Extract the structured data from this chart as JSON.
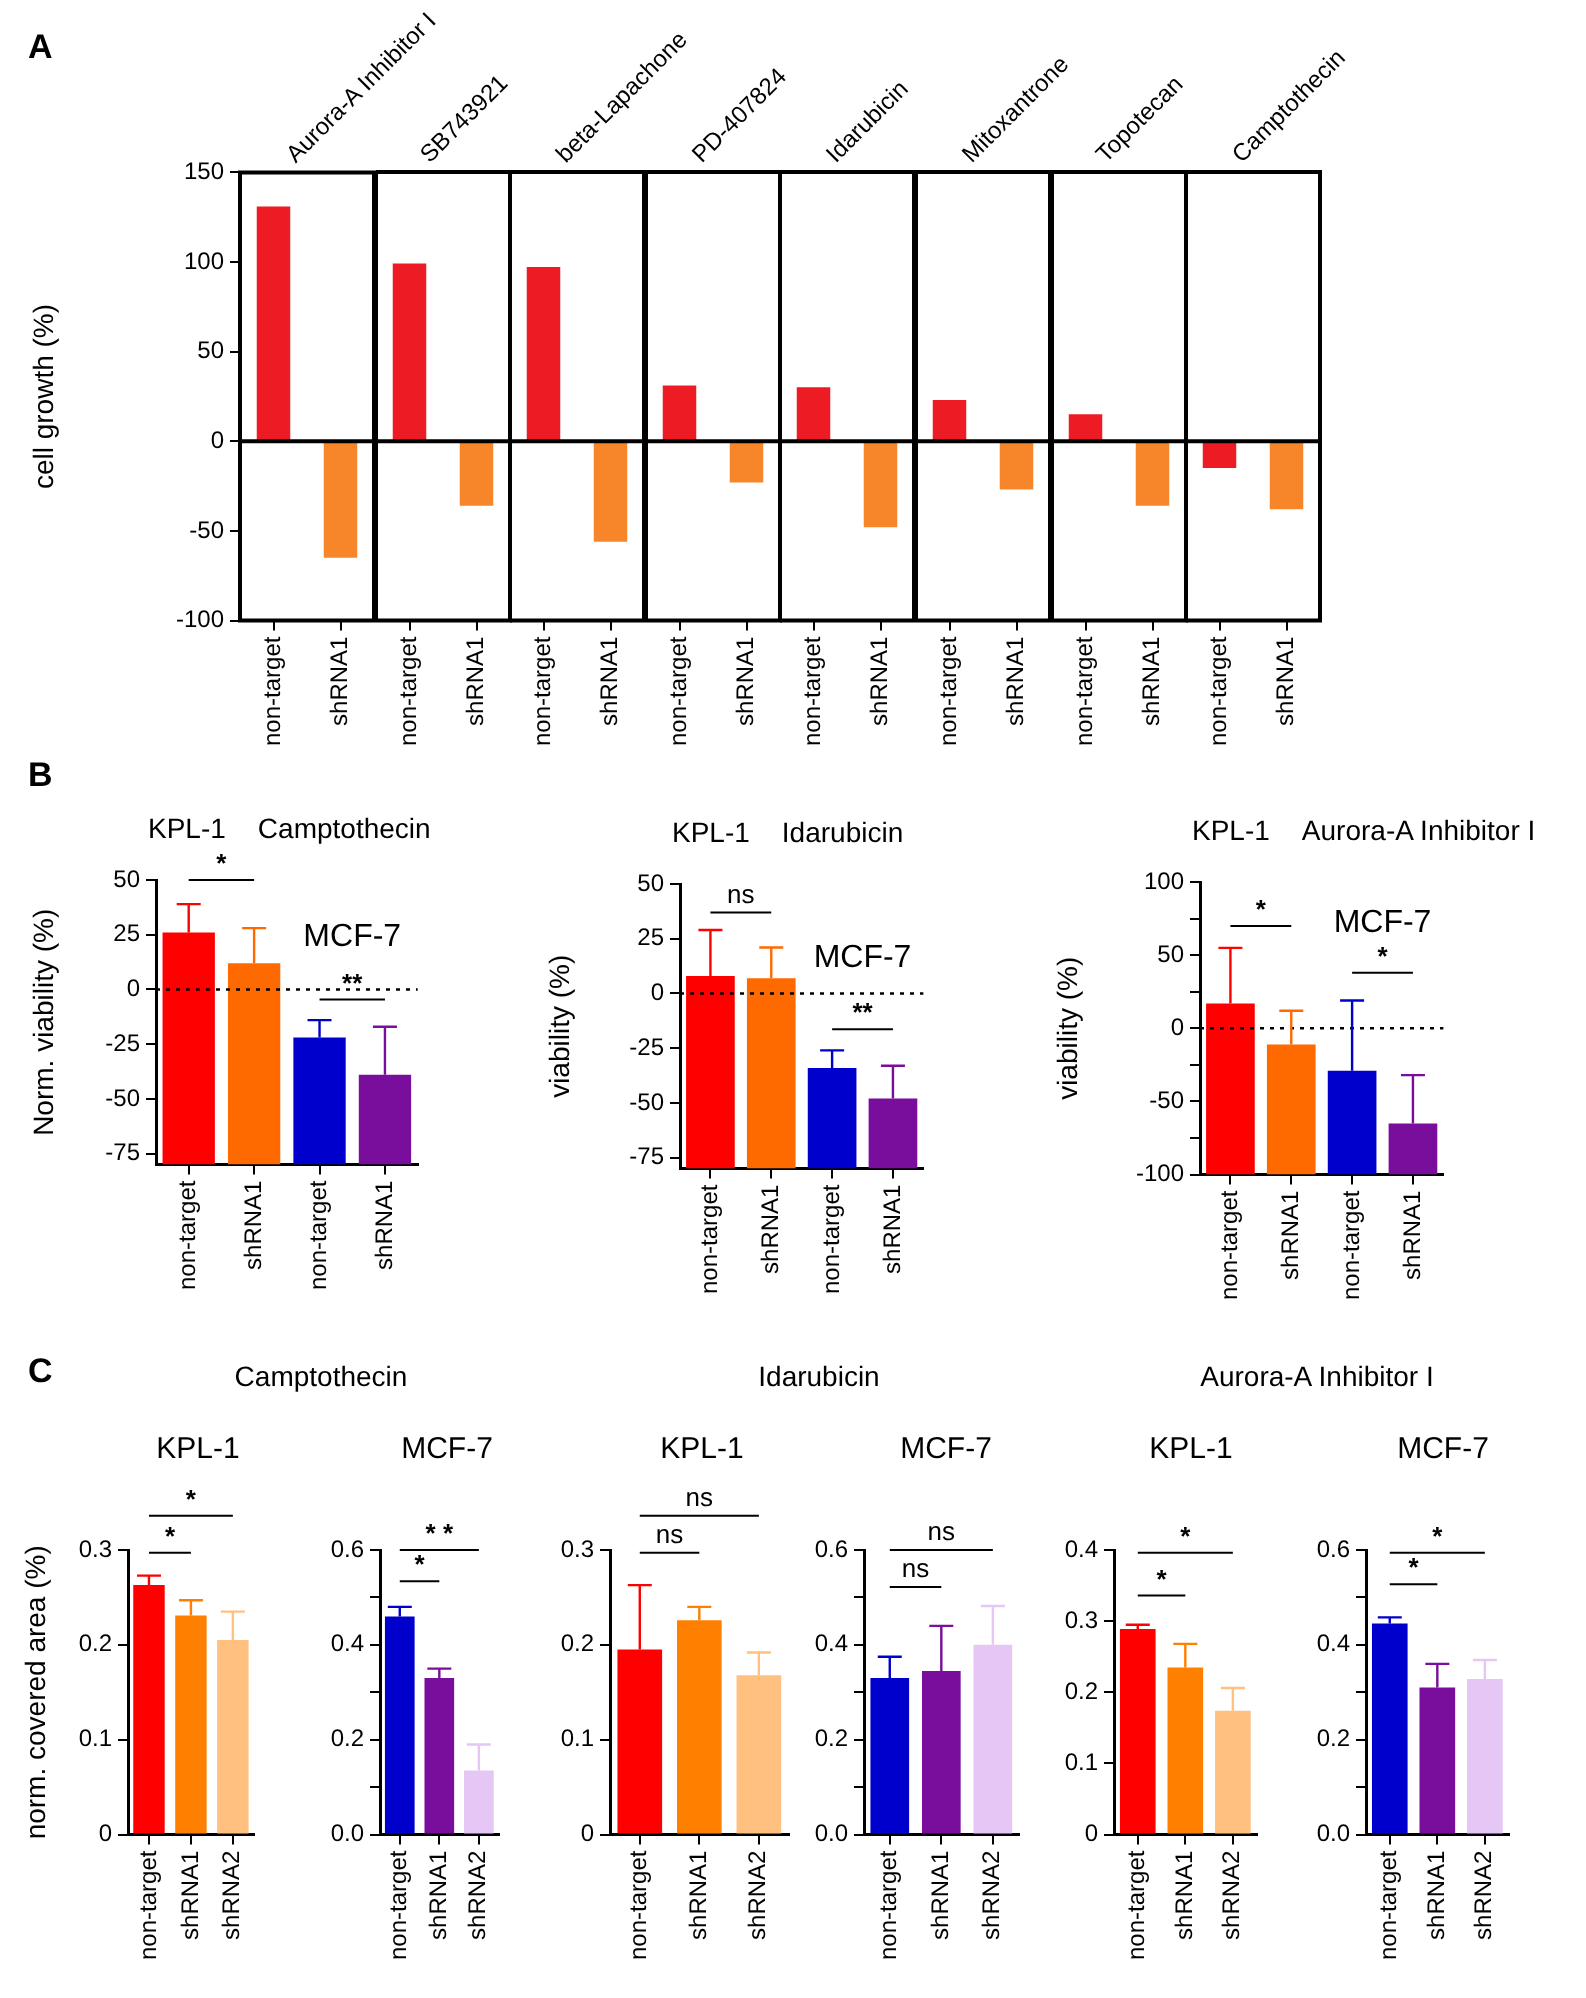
{
  "chart_data": [
    {
      "type": "bar",
      "title": "Aurora-A Inhibitor I",
      "ylabel": "cell growth (%)",
      "annotations": [
        "A"
      ],
      "categories": [
        "non-target",
        "shRNA1"
      ],
      "values": [
        131,
        -65
      ],
      "colors": [
        "#ed1c24",
        "#f7852a"
      ],
      "ylim": [
        -100,
        150
      ],
      "yticks": [
        -100,
        -50,
        0,
        50,
        100,
        150
      ],
      "ref_lines": [
        {
          "axis": "y",
          "value": 0,
          "line_style": "solid"
        }
      ]
    },
    {
      "type": "bar",
      "title": "SB743921",
      "categories": [
        "non-target",
        "shRNA1"
      ],
      "values": [
        99,
        -36
      ],
      "colors": [
        "#ed1c24",
        "#f7852a"
      ],
      "ylim": [
        -100,
        150
      ],
      "yticks": [
        -100,
        -50,
        0,
        50,
        100,
        150
      ],
      "tick_labels": "x",
      "ref_lines": [
        {
          "axis": "y",
          "value": 0,
          "line_style": "solid"
        }
      ]
    },
    {
      "type": "bar",
      "title": "beta-Lapachone",
      "categories": [
        "non-target",
        "shRNA1"
      ],
      "values": [
        97,
        -56
      ],
      "colors": [
        "#ed1c24",
        "#f7852a"
      ],
      "ylim": [
        -100,
        150
      ],
      "yticks": [
        -100,
        -50,
        0,
        50,
        100,
        150
      ],
      "tick_labels": "x",
      "ref_lines": [
        {
          "axis": "y",
          "value": 0,
          "line_style": "solid"
        }
      ]
    },
    {
      "type": "bar",
      "title": "PD-407824",
      "categories": [
        "non-target",
        "shRNA1"
      ],
      "values": [
        31,
        -23
      ],
      "colors": [
        "#ed1c24",
        "#f7852a"
      ],
      "ylim": [
        -100,
        150
      ],
      "yticks": [
        -100,
        -50,
        0,
        50,
        100,
        150
      ],
      "tick_labels": "x",
      "ref_lines": [
        {
          "axis": "y",
          "value": 0,
          "line_style": "solid"
        }
      ]
    },
    {
      "type": "bar",
      "title": "Idarubicin",
      "categories": [
        "non-target",
        "shRNA1"
      ],
      "values": [
        30,
        -48
      ],
      "colors": [
        "#ed1c24",
        "#f7852a"
      ],
      "ylim": [
        -100,
        150
      ],
      "yticks": [
        -100,
        -50,
        0,
        50,
        100,
        150
      ],
      "tick_labels": "x",
      "ref_lines": [
        {
          "axis": "y",
          "value": 0,
          "line_style": "solid"
        }
      ]
    },
    {
      "type": "bar",
      "title": "Mitoxantrone",
      "categories": [
        "non-target",
        "shRNA1"
      ],
      "values": [
        23,
        -27
      ],
      "colors": [
        "#ed1c24",
        "#f7852a"
      ],
      "ylim": [
        -100,
        150
      ],
      "yticks": [
        -100,
        -50,
        0,
        50,
        100,
        150
      ],
      "tick_labels": "x",
      "ref_lines": [
        {
          "axis": "y",
          "value": 0,
          "line_style": "solid"
        }
      ]
    },
    {
      "type": "bar",
      "title": "Topotecan",
      "categories": [
        "non-target",
        "shRNA1"
      ],
      "values": [
        15,
        -36
      ],
      "colors": [
        "#ed1c24",
        "#f7852a"
      ],
      "ylim": [
        -100,
        150
      ],
      "yticks": [
        -100,
        -50,
        0,
        50,
        100,
        150
      ],
      "tick_labels": "x",
      "ref_lines": [
        {
          "axis": "y",
          "value": 0,
          "line_style": "solid"
        }
      ]
    },
    {
      "type": "bar",
      "title": "Camptothecin",
      "categories": [
        "non-target",
        "shRNA1"
      ],
      "values": [
        -15,
        -38
      ],
      "colors": [
        "#ed1c24",
        "#f7852a"
      ],
      "ylim": [
        -100,
        150
      ],
      "yticks": [
        -100,
        -50,
        0,
        50,
        100,
        150
      ],
      "tick_labels": "x",
      "ref_lines": [
        {
          "axis": "y",
          "value": 0,
          "line_style": "solid"
        }
      ]
    },
    {
      "type": "bar",
      "title": "Camptothecin",
      "subtitle": "KPL-1",
      "ylabel": "Norm. viability (%)",
      "annotations": [
        "B",
        "*",
        "**",
        "MCF-7"
      ],
      "categories": [
        "non-target",
        "shRNA1",
        "non-target",
        "shRNA1"
      ],
      "base": [
        -80,
        -80,
        -80,
        -80
      ],
      "values": [
        106,
        92,
        58,
        41
      ],
      "colors": [
        "#ff0000",
        "#ff6a00",
        "#0000cc",
        "#7a0e9c"
      ],
      "errors": [
        [
          26,
          39
        ],
        [
          12,
          28
        ],
        [
          -22,
          -14
        ],
        [
          -39,
          -17
        ]
      ],
      "ylim": [
        -80,
        50
      ],
      "yticks": [
        -75,
        -50,
        -25,
        0,
        25,
        50
      ],
      "ref_lines": [
        {
          "axis": "y",
          "value": 0,
          "line_style": "dotted"
        }
      ]
    },
    {
      "type": "bar",
      "title": "Idarubicin",
      "subtitle": "KPL-1",
      "ylabel": "viability (%)",
      "annotations": [
        "ns",
        "**",
        "MCF-7"
      ],
      "categories": [
        "non-target",
        "shRNA1",
        "non-target",
        "shRNA1"
      ],
      "base": [
        -80,
        -80,
        -80,
        -80
      ],
      "values": [
        88,
        87,
        46,
        32
      ],
      "colors": [
        "#ff0000",
        "#ff6a00",
        "#0000cc",
        "#7a0e9c"
      ],
      "errors": [
        [
          8,
          29
        ],
        [
          7,
          21
        ],
        [
          -34,
          -26
        ],
        [
          -48,
          -33
        ]
      ],
      "ylim": [
        -80,
        50
      ],
      "yticks": [
        -75,
        -50,
        -25,
        0,
        25,
        50
      ],
      "ref_lines": [
        {
          "axis": "y",
          "value": 0,
          "line_style": "dotted"
        }
      ]
    },
    {
      "type": "bar",
      "title": "Aurora-A Inhibitor I",
      "subtitle": "KPL-1",
      "ylabel": "viability (%)",
      "annotations": [
        "*",
        "*",
        "MCF-7"
      ],
      "categories": [
        "non-target",
        "shRNA1",
        "non-target",
        "shRNA1"
      ],
      "base": [
        -100,
        -100,
        -100,
        -100
      ],
      "values": [
        117,
        89,
        71,
        35
      ],
      "colors": [
        "#ff0000",
        "#ff6a00",
        "#0000cc",
        "#7a0e9c"
      ],
      "errors": [
        [
          17,
          55
        ],
        [
          -11,
          12
        ],
        [
          -29,
          19
        ],
        [
          -65,
          -32
        ]
      ],
      "ylim": [
        -100,
        100
      ],
      "yticks": [
        -100,
        {
          "value": -75,
          "label": null
        },
        -50,
        {
          "value": -25,
          "label": null
        },
        0,
        {
          "value": 25,
          "label": null
        },
        50,
        {
          "value": 75,
          "label": null
        },
        100
      ],
      "ref_lines": [
        {
          "axis": "y",
          "value": 0,
          "line_style": "dotted"
        }
      ]
    },
    {
      "type": "bar",
      "title": "Camptothecin",
      "subtitle": "KPL-1",
      "ylabel": "norm. covered area (%)",
      "annotations": [
        "C",
        "*",
        "*"
      ],
      "categories": [
        "non-target",
        "shRNA1",
        "shRNA2"
      ],
      "values": [
        0.263,
        0.231,
        0.205
      ],
      "colors": [
        "#ff0000",
        "#ff8000",
        "#ffc080"
      ],
      "errors": [
        [
          0.263,
          0.273
        ],
        [
          0.231,
          0.247
        ],
        [
          0.205,
          0.235
        ]
      ],
      "ylim": [
        0,
        0.3
      ],
      "yticks": [
        0,
        0.1,
        0.2,
        0.3
      ]
    },
    {
      "type": "bar",
      "title": "MCF-7",
      "annotations": [
        "*",
        "* *"
      ],
      "categories": [
        "non-target",
        "shRNA1",
        "shRNA2"
      ],
      "values": [
        0.46,
        0.33,
        0.135
      ],
      "colors": [
        "#0000cc",
        "#7a0e9c",
        "#e6c6f4"
      ],
      "errors": [
        [
          0.46,
          0.48
        ],
        [
          0.33,
          0.35
        ],
        [
          0.135,
          0.19
        ]
      ],
      "ylim": [
        0,
        0.6
      ],
      "yticks": [
        {
          "value": 0,
          "label": "0.0"
        },
        {
          "value": 0.1,
          "label": null
        },
        0.2,
        {
          "value": 0.3,
          "label": null
        },
        0.4,
        {
          "value": 0.5,
          "label": null
        },
        0.6
      ]
    },
    {
      "type": "bar",
      "title": "Idarubicin",
      "subtitle": "KPL-1",
      "annotations": [
        "ns",
        "ns"
      ],
      "categories": [
        "non-target",
        "shRNA1",
        "shRNA2"
      ],
      "values": [
        0.195,
        0.226,
        0.168
      ],
      "colors": [
        "#ff0000",
        "#ff8000",
        "#ffc080"
      ],
      "errors": [
        [
          0.195,
          0.263
        ],
        [
          0.226,
          0.24
        ],
        [
          0.168,
          0.192
        ]
      ],
      "ylim": [
        0,
        0.3
      ],
      "yticks": [
        0,
        0.1,
        0.2,
        0.3
      ]
    },
    {
      "type": "bar",
      "title": "MCF-7",
      "annotations": [
        "ns",
        "ns"
      ],
      "categories": [
        "non-target",
        "shRNA1",
        "shRNA2"
      ],
      "values": [
        0.33,
        0.345,
        0.4
      ],
      "colors": [
        "#0000cc",
        "#7a0e9c",
        "#e6c6f4"
      ],
      "errors": [
        [
          0.33,
          0.375
        ],
        [
          0.345,
          0.44
        ],
        [
          0.4,
          0.482
        ]
      ],
      "ylim": [
        0,
        0.6
      ],
      "yticks": [
        {
          "value": 0,
          "label": "0.0"
        },
        {
          "value": 0.1,
          "label": null
        },
        0.2,
        {
          "value": 0.3,
          "label": null
        },
        0.4,
        {
          "value": 0.5,
          "label": null
        },
        0.6
      ]
    },
    {
      "type": "bar",
      "title": "Aurora-A Inhibitor I",
      "subtitle": "KPL-1",
      "annotations": [
        "*",
        "*"
      ],
      "categories": [
        "non-target",
        "shRNA1",
        "shRNA2"
      ],
      "values": [
        0.289,
        0.235,
        0.174
      ],
      "colors": [
        "#ff0000",
        "#ff8000",
        "#ffc080"
      ],
      "errors": [
        [
          0.289,
          0.295
        ],
        [
          0.235,
          0.268
        ],
        [
          0.174,
          0.206
        ]
      ],
      "ylim": [
        0,
        0.4
      ],
      "yticks": [
        0,
        0.1,
        0.2,
        0.3,
        0.4
      ]
    },
    {
      "type": "bar",
      "title": "MCF-7",
      "annotations": [
        "*",
        "*"
      ],
      "categories": [
        "non-target",
        "shRNA1",
        "shRNA2"
      ],
      "values": [
        0.445,
        0.31,
        0.328
      ],
      "colors": [
        "#0000cc",
        "#7a0e9c",
        "#e6c6f4"
      ],
      "errors": [
        [
          0.445,
          0.458
        ],
        [
          0.31,
          0.36
        ],
        [
          0.328,
          0.368
        ]
      ],
      "ylim": [
        0,
        0.6
      ],
      "yticks": [
        {
          "value": 0,
          "label": "0.0"
        },
        {
          "value": 0.1,
          "label": null
        },
        0.2,
        {
          "value": 0.3,
          "label": null
        },
        0.4,
        {
          "value": 0.5,
          "label": null
        },
        0.6
      ]
    }
  ]
}
